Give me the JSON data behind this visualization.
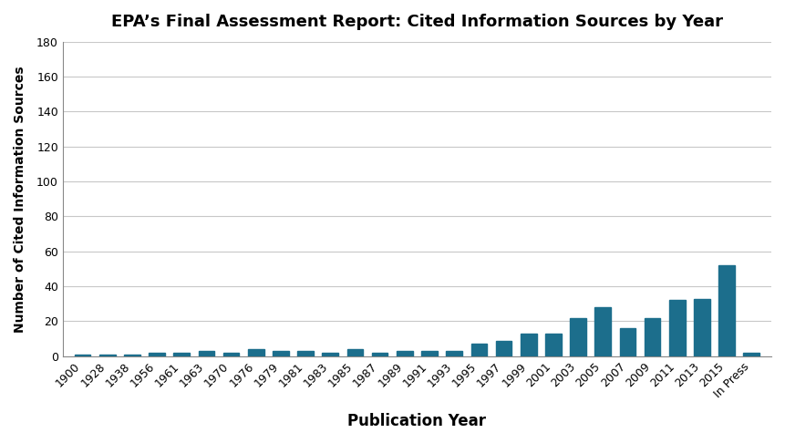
{
  "title": "EPA’s Final Assessment Report: Cited Information Sources by Year",
  "xlabel": "Publication Year",
  "ylabel": "Number of Cited Information Sources",
  "ylim": [
    0,
    180
  ],
  "yticks": [
    0,
    20,
    40,
    60,
    80,
    100,
    120,
    140,
    160,
    180
  ],
  "bar_color": "#1c6e8c",
  "background_color": "#ffffff",
  "categories": [
    "1900",
    "1928",
    "1938",
    "1956",
    "1961",
    "1963",
    "1970",
    "1976",
    "1979",
    "1981",
    "1983",
    "1985",
    "1987",
    "1989",
    "1991",
    "1993",
    "1995",
    "1997",
    "1999",
    "2001",
    "2003",
    "2005",
    "2007",
    "2009",
    "2011",
    "2013",
    "2015",
    "In Press"
  ],
  "values": [
    1,
    1,
    1,
    2,
    2,
    3,
    2,
    4,
    3,
    3,
    2,
    4,
    2,
    3,
    3,
    3,
    7,
    9,
    13,
    13,
    22,
    28,
    16,
    22,
    32,
    33,
    52,
    2
  ],
  "title_fontsize": 13,
  "xlabel_fontsize": 12,
  "ylabel_fontsize": 10,
  "tick_fontsize": 9
}
